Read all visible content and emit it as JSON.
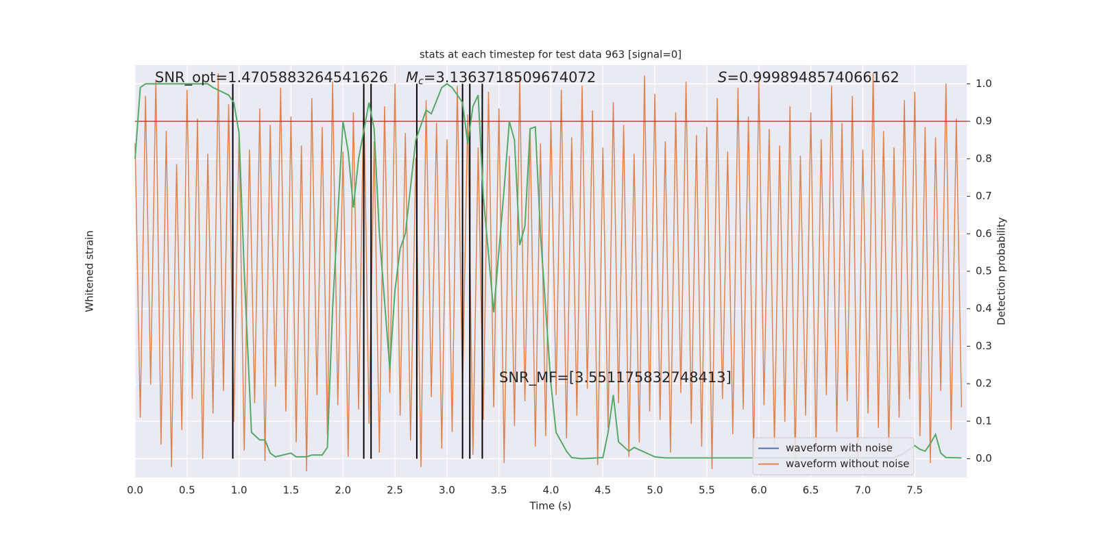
{
  "chart_data": {
    "type": "line",
    "title": "stats at each timestep for test data 963 [signal=0]",
    "xlabel": "Time (s)",
    "ylabel": "Whitened strain",
    "y2label": "Detection probability",
    "annotations": {
      "snr_opt": "SNR_opt=1.4705883264541626",
      "mc": {
        "symbol": "M",
        "subscript": "c",
        "text": "=3.1363718509674072"
      },
      "s": {
        "symbol": "S",
        "text": "=0.9998948574066162"
      },
      "snr_mf": "SNR_MF=[3.551175832748413]"
    },
    "xlim": [
      0,
      8
    ],
    "ylim": [
      -1,
      1
    ],
    "y2lim": [
      -0.05,
      1.05
    ],
    "xticks": [
      {
        "value": 0,
        "label": "0.0"
      },
      0.5,
      {
        "value": 1,
        "label": "1.0"
      },
      1.5,
      {
        "value": 2,
        "label": "2.0"
      },
      2.5,
      {
        "value": 3,
        "label": "3.0"
      },
      3.5,
      {
        "value": 4,
        "label": "4.0"
      },
      4.5,
      {
        "value": 5,
        "label": "5.0"
      },
      5.5,
      {
        "value": 6,
        "label": "6.0"
      },
      6.5,
      {
        "value": 7,
        "label": "7.0"
      },
      7.5
    ],
    "y2ticks": [
      {
        "value": 0,
        "label": "0.0"
      },
      0.1,
      0.2,
      0.3,
      0.4,
      0.5,
      0.6,
      0.7,
      0.8,
      0.9,
      {
        "value": 1,
        "label": "1.0"
      }
    ],
    "grid": true,
    "legend": "lower right",
    "threshold": 0.9,
    "threshold_color": "#c03d3e",
    "event_times": [
      0.94,
      2.2,
      2.27,
      2.71,
      3.15,
      3.22,
      3.34
    ],
    "event_color": "#000000",
    "series": [
      {
        "name": "waveform with noise",
        "color": "#4c72b0"
      },
      {
        "name": "waveform without noise",
        "color": "#dd8452",
        "x": [
          0,
          0.05,
          0.1,
          0.15,
          0.2,
          0.25,
          0.3,
          0.35,
          0.4,
          0.45,
          0.5,
          0.55,
          0.6,
          0.65,
          0.7,
          0.75,
          0.8,
          0.85,
          0.9,
          0.95,
          1,
          1.05,
          1.1,
          1.15,
          1.2,
          1.25,
          1.3,
          1.35,
          1.4,
          1.45,
          1.5,
          1.55,
          1.6,
          1.65,
          1.7,
          1.75,
          1.8,
          1.85,
          1.9,
          1.95,
          2,
          2.05,
          2.1,
          2.15,
          2.2,
          2.25,
          2.3,
          2.35,
          2.4,
          2.45,
          2.5,
          2.55,
          2.6,
          2.65,
          2.7,
          2.75,
          2.8,
          2.85,
          2.9,
          2.95,
          3,
          3.05,
          3.1,
          3.15,
          3.2,
          3.25,
          3.3,
          3.35,
          3.4,
          3.45,
          3.5,
          3.55,
          3.6,
          3.65,
          3.7,
          3.75,
          3.8,
          3.85,
          3.9,
          3.95,
          4,
          4.05,
          4.1,
          4.15,
          4.2,
          4.25,
          4.3,
          4.35,
          4.4,
          4.45,
          4.5,
          4.55,
          4.6,
          4.65,
          4.7,
          4.75,
          4.8,
          4.85,
          4.9,
          4.95,
          5,
          5.05,
          5.1,
          5.15,
          5.2,
          5.25,
          5.3,
          5.35,
          5.4,
          5.45,
          5.5,
          5.55,
          5.6,
          5.65,
          5.7,
          5.75,
          5.8,
          5.85,
          5.9,
          5.95,
          6,
          6.05,
          6.1,
          6.15,
          6.2,
          6.25,
          6.3,
          6.35,
          6.4,
          6.45,
          6.5,
          6.55,
          6.6,
          6.65,
          6.7,
          6.75,
          6.8,
          6.85,
          6.9,
          6.95,
          7,
          7.05,
          7.1,
          7.15,
          7.2,
          7.25,
          7.3,
          7.35,
          7.4,
          7.45,
          7.5,
          7.55,
          7.6,
          7.65,
          7.7,
          7.75,
          7.8,
          7.85,
          7.9,
          7.95
        ],
        "values": [
          0.62,
          -0.71,
          0.85,
          -0.55,
          0.93,
          -0.84,
          0.68,
          -0.95,
          0.52,
          -0.77,
          0.88,
          -0.62,
          0.74,
          -0.91,
          0.57,
          -0.69,
          0.96,
          -0.58,
          0.81,
          -0.73,
          0.66,
          -0.87,
          0.59,
          -0.64,
          0.79,
          -0.92,
          0.71,
          -0.56,
          0.89,
          -0.68,
          0.75,
          -0.83,
          0.61,
          -0.97,
          0.84,
          -0.6,
          0.7,
          -0.79,
          0.92,
          -0.65,
          0.58,
          -0.9,
          0.77,
          -0.67,
          0.86,
          -0.74,
          0.63,
          -0.88,
          0.8,
          -0.59,
          0.91,
          -0.7,
          0.67,
          -0.82,
          0.55,
          -0.95,
          0.83,
          -0.61,
          0.72,
          -0.86,
          0.64,
          -0.78,
          0.9,
          -0.57,
          0.76,
          -0.89,
          0.6,
          -0.72,
          0.87,
          -0.66,
          0.79,
          -0.93,
          0.56,
          -0.75,
          0.94,
          -0.63,
          0.69,
          -0.85,
          0.62,
          -0.8,
          0.73,
          -0.6,
          0.88,
          -0.81,
          0.65,
          -0.7,
          0.9,
          -0.57,
          0.78,
          -0.94,
          0.6,
          -0.76,
          0.82,
          -0.64,
          0.71,
          -0.9,
          0.57,
          -0.83,
          0.95,
          -0.68,
          0.86,
          -0.72,
          0.63,
          -0.88,
          0.77,
          -0.59,
          0.92,
          -0.74,
          0.66,
          -0.85,
          0.7,
          -0.96,
          0.84,
          -0.62,
          0.58,
          -0.79,
          0.89,
          -0.67,
          0.75,
          -0.91,
          0.93,
          -0.65,
          0.69,
          -0.84,
          0.61,
          -0.73,
          0.8,
          -0.92,
          0.56,
          -0.7,
          0.77,
          -0.87,
          0.64,
          -0.6,
          0.9,
          -0.78,
          0.72,
          -0.63,
          0.85,
          -0.95,
          0.59,
          -0.69,
          0.96,
          -0.76,
          0.68,
          -0.86,
          0.6,
          -0.71,
          0.83,
          -0.62,
          0.87,
          -0.8,
          0.7,
          -0.93,
          0.65,
          -0.58,
          0.91,
          -0.77,
          0.74,
          -0.66
        ]
      },
      {
        "name": "detection probability",
        "color": "#55a868",
        "axis": "y2",
        "x": [
          0,
          0.05,
          0.1,
          0.7,
          0.75,
          0.9,
          0.95,
          1,
          1.05,
          1.12,
          1.2,
          1.25,
          1.3,
          1.35,
          1.5,
          1.55,
          1.65,
          1.7,
          1.8,
          1.85,
          1.9,
          2,
          2.05,
          2.1,
          2.15,
          2.25,
          2.3,
          2.35,
          2.45,
          2.5,
          2.55,
          2.6,
          2.7,
          2.8,
          2.85,
          2.95,
          3,
          3.05,
          3.15,
          3.2,
          3.25,
          3.3,
          3.35,
          3.45,
          3.55,
          3.6,
          3.65,
          3.7,
          3.75,
          3.8,
          3.85,
          3.9,
          4,
          4.05,
          4.15,
          4.2,
          4.3,
          4.5,
          4.55,
          4.6,
          4.65,
          4.75,
          4.8,
          5,
          5.1,
          5.5,
          6,
          7.3,
          7.4,
          7.5,
          7.55,
          7.6,
          7.65,
          7.7,
          7.75,
          7.8,
          7.95
        ],
        "values": [
          0.8,
          0.99,
          1,
          1,
          0.99,
          0.97,
          0.95,
          0.87,
          0.5,
          0.07,
          0.05,
          0.05,
          0.015,
          0.005,
          0.015,
          0.005,
          0.005,
          0.01,
          0.01,
          0.03,
          0.4,
          0.9,
          0.82,
          0.67,
          0.8,
          0.95,
          0.88,
          0.6,
          0.24,
          0.45,
          0.56,
          0.6,
          0.85,
          0.93,
          0.92,
          0.99,
          1,
          0.99,
          0.95,
          0.84,
          0.94,
          0.97,
          0.7,
          0.39,
          0.72,
          0.9,
          0.85,
          0.57,
          0.62,
          0.88,
          0.885,
          0.6,
          0.2,
          0.07,
          0.02,
          0.003,
          0,
          0.003,
          0.07,
          0.17,
          0.045,
          0.02,
          0.03,
          0.005,
          0.002,
          0.002,
          0.002,
          0.002,
          0.015,
          0.035,
          0.025,
          0.02,
          0.04,
          0.065,
          0.015,
          0.003,
          0.002
        ]
      }
    ]
  }
}
